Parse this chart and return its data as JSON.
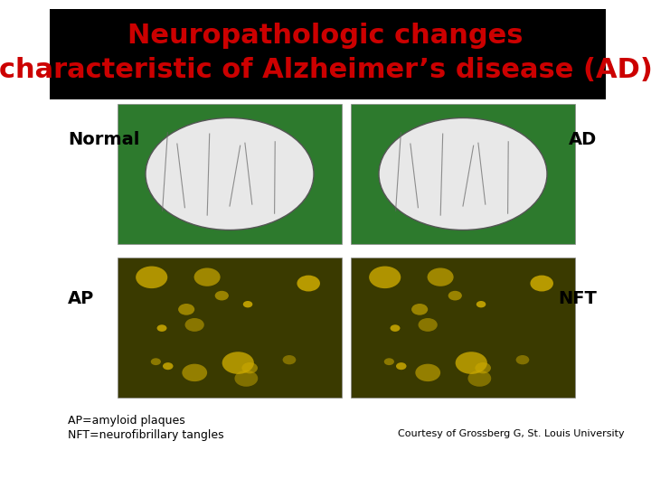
{
  "title_line1": "Neuropathologic changes",
  "title_line2": "characteristic of Alzheimer’s disease (AD)",
  "title_color": "#cc0000",
  "title_bg_color": "#000000",
  "title_fontsize": 22,
  "label_normal": "Normal",
  "label_ad": "AD",
  "label_ap": "AP",
  "label_nft": "NFT",
  "label_fontsize": 14,
  "label_color": "#000000",
  "footnote1": "AP=amyloid plaques",
  "footnote2": "NFT=neurofibrillary tangles",
  "courtesy": "Courtesy of Grossberg G, St. Louis University",
  "footnote_fontsize": 9,
  "bg_color": "#ffffff",
  "brain_bg": "#2d7a2d",
  "micro_bg": "#3a3a00"
}
